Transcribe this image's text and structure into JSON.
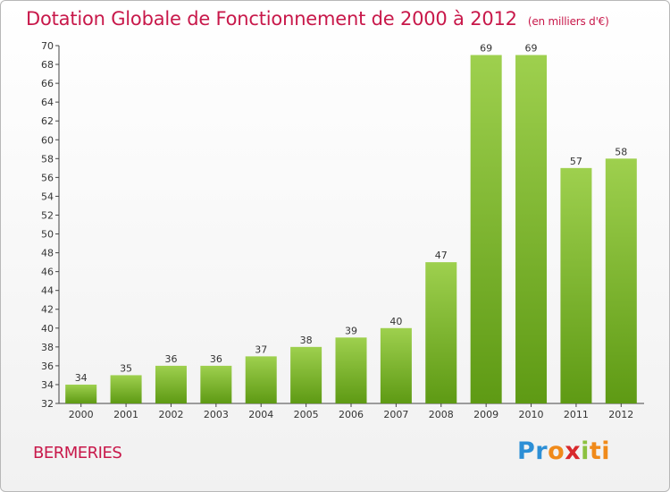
{
  "header": {
    "title": "Dotation Globale de Fonctionnement de 2000 à 2012",
    "unit": "(en milliers d'€)"
  },
  "footer": {
    "commune": "BERMERIES",
    "logo_letters": [
      "P",
      "r",
      "o",
      "x",
      "i",
      "ti"
    ]
  },
  "colors": {
    "accent": "#c8184a",
    "bar_top": "#9ed04e",
    "bar_bottom": "#5e9a14"
  },
  "chart_data": {
    "type": "bar",
    "title": "Dotation Globale de Fonctionnement de 2000 à 2012",
    "subtitle": "(en milliers d'€)",
    "categories": [
      "2000",
      "2001",
      "2002",
      "2003",
      "2004",
      "2005",
      "2006",
      "2007",
      "2008",
      "2009",
      "2010",
      "2011",
      "2012"
    ],
    "values": [
      34,
      35,
      36,
      36,
      37,
      38,
      39,
      40,
      47,
      69,
      69,
      57,
      58
    ],
    "xlabel": "",
    "ylabel": "",
    "ylim": [
      32,
      70
    ],
    "yticks": [
      32,
      34,
      36,
      38,
      40,
      42,
      44,
      46,
      48,
      50,
      52,
      54,
      56,
      58,
      60,
      62,
      64,
      66,
      68,
      70
    ],
    "grid": false,
    "legend": "none"
  }
}
